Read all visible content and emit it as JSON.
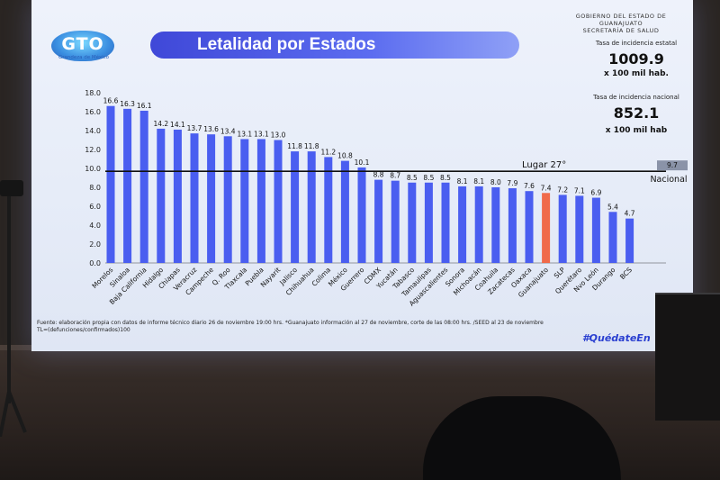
{
  "slide": {
    "logo_text": "GTO",
    "logo_tagline": "Grandeza de México",
    "title": "Letalidad por Estados",
    "org_line1": "GOBIERNO DEL ESTADO DE GUANAJUATO",
    "org_line2": "SECRETARÍA DE SALUD",
    "state_rate_label": "Tasa de incidencia estatal",
    "state_rate_value": "1009.9",
    "state_rate_unit": "x 100 mil hab.",
    "national_rate_label": "Tasa de incidencia nacional",
    "national_rate_value": "852.1",
    "national_rate_unit": "x 100 mil hab",
    "footnote_line1": "Fuente: elaboración propia con datos de informe técnico diario 26 de noviembre 19:00 hrs. *Guanajuato información al 27 de noviembre, corte de las 08:00 hrs. /SEED al 23 de noviembre",
    "footnote_line2": "TL=(defunciones/confirmados)100",
    "hashtag": "#QuédateEn"
  },
  "chart_data": {
    "type": "bar",
    "title": "Letalidad por Estados",
    "categories": [
      "Morelos",
      "Sinaloa",
      "Baja California",
      "Hidalgo",
      "Chiapas",
      "Veracruz",
      "Campeche",
      "Q. Roo",
      "Tlaxcala",
      "Puebla",
      "Nayarit",
      "Jalisco",
      "Chihuahua",
      "Colima",
      "México",
      "Guerrero",
      "CDMX",
      "Yucatán",
      "Tabasco",
      "Tamaulipas",
      "Aguascalientes",
      "Sonora",
      "Michoacán",
      "Coahuila",
      "Zacatecas",
      "Oaxaca",
      "Guanajuato",
      "SLP",
      "Querétaro",
      "Nvo León",
      "Durango",
      "BCS"
    ],
    "values": [
      16.6,
      16.3,
      16.1,
      14.2,
      14.1,
      13.7,
      13.6,
      13.4,
      13.1,
      13.1,
      13.0,
      11.8,
      11.8,
      11.2,
      10.8,
      10.1,
      8.8,
      8.7,
      8.5,
      8.5,
      8.5,
      8.1,
      8.1,
      8.0,
      7.9,
      7.6,
      7.4,
      7.2,
      7.1,
      6.9,
      5.4,
      4.7
    ],
    "value_labels": [
      "16.6",
      "16.3",
      "16.1",
      "14.2",
      "14.1",
      "13.7",
      "13.6",
      "13.4",
      "13.1",
      "13.1",
      "13.0",
      "11.8",
      "11.8",
      "11.2",
      "10.8",
      "10.1",
      "8.8",
      "8.7",
      "8.5",
      "8.5",
      "8.5",
      "8.1",
      "8.1",
      "8.0",
      "7.9",
      "7.6",
      "7.4",
      "7.2",
      "7.1",
      "6.9",
      "5.4",
      "4.7"
    ],
    "highlight": "Guanajuato",
    "bar_color": "#4a5ef0",
    "highlight_color": "#f06a4a",
    "ylim": [
      0,
      18
    ],
    "yticks": [
      "0.0",
      "2.0",
      "4.0",
      "6.0",
      "8.0",
      "10.0",
      "12.0",
      "14.0",
      "16.0",
      "18.0"
    ],
    "reference_line": {
      "value": 9.7,
      "label": "9.7",
      "caption": "Nacional"
    },
    "rank_label": "Lugar 27°",
    "grid": false
  }
}
